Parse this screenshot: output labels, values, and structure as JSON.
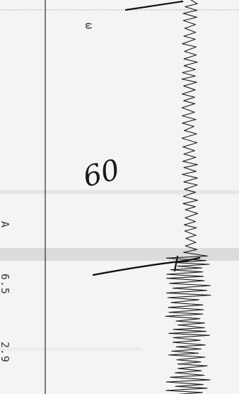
{
  "strip": {
    "marker_top": "ω",
    "handwritten": "60",
    "labels": [
      {
        "key": "A",
        "text": "A"
      },
      {
        "key": "v1",
        "text": "6.5"
      },
      {
        "key": "v2",
        "text": "2.9"
      }
    ]
  }
}
